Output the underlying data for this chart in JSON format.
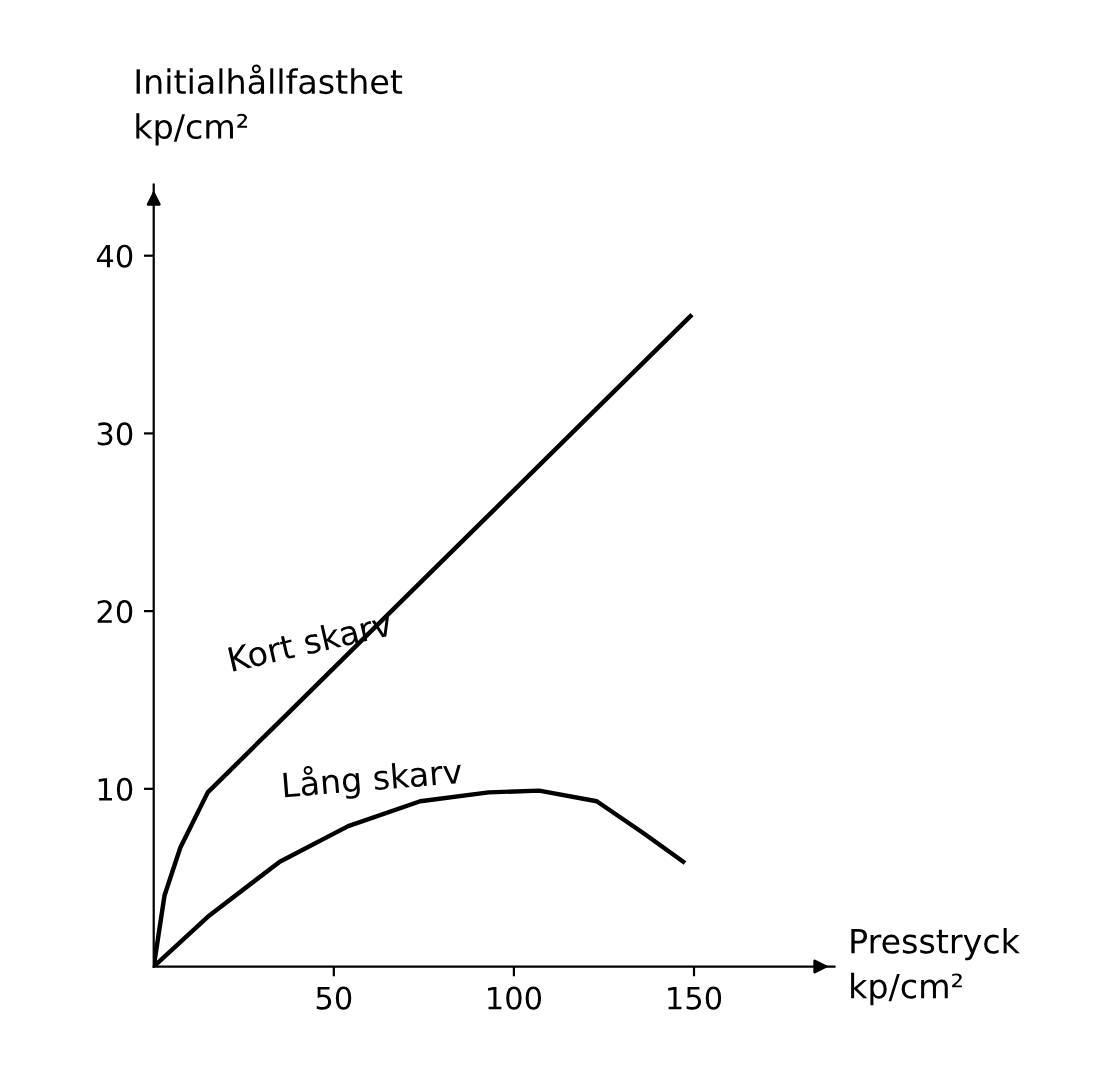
{
  "chart_data": {
    "type": "line",
    "xlabel": "Presstryck\nkp/cm²",
    "ylabel": "Initialhållfasthet\nkp/cm²",
    "xlim": [
      0,
      189
    ],
    "ylim": [
      0,
      44
    ],
    "xticks": [
      50,
      100,
      150
    ],
    "yticks": [
      10,
      20,
      30,
      40
    ],
    "grid": false,
    "legend": false,
    "marker": "none",
    "line_style": "solid",
    "series": [
      {
        "name": "Kort skarv",
        "color": "#000000",
        "x": [
          0,
          3,
          7.4,
          15,
          21,
          35,
          60,
          93,
          120,
          149
        ],
        "values": [
          0,
          4,
          6.7,
          9.8,
          11,
          13.8,
          18.8,
          25.4,
          30.8,
          36.6
        ]
      },
      {
        "name": "Lång skarv",
        "color": "#000000",
        "x": [
          0,
          15,
          35,
          54,
          74,
          93,
          107,
          123,
          136,
          147
        ],
        "values": [
          0,
          2.8,
          5.9,
          7.9,
          9.3,
          9.8,
          9.9,
          9.3,
          7.5,
          5.9
        ]
      }
    ]
  }
}
